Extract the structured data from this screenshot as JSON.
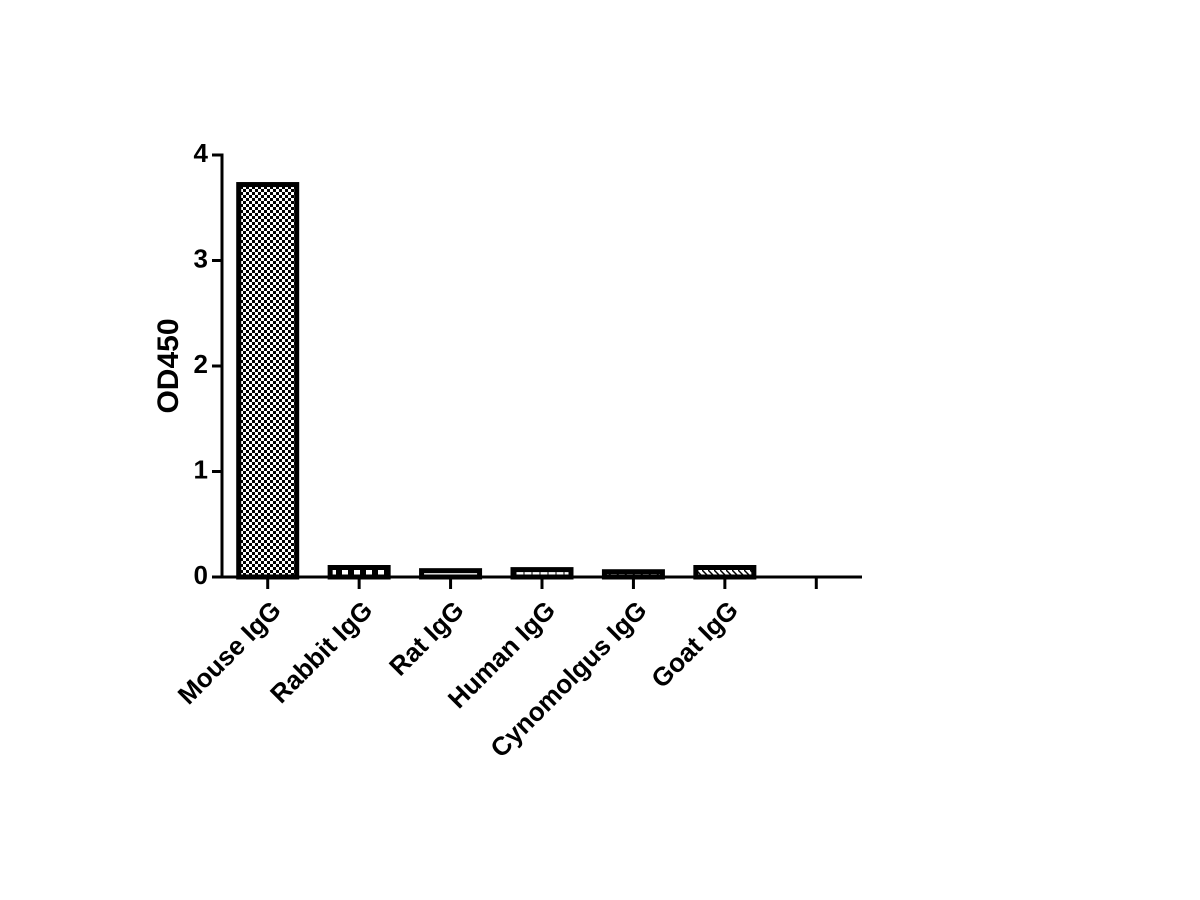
{
  "chart_data": {
    "type": "bar",
    "y_label": "OD450",
    "categories": [
      "Mouse IgG",
      "Rabbit IgG",
      "Rat IgG",
      "Human IgG",
      "Cynomolgus IgG",
      "Goat IgG",
      null
    ],
    "values": [
      3.72,
      0.09,
      0.06,
      0.07,
      0.05,
      0.09,
      null
    ],
    "color": "#000000",
    "ylim": [
      0,
      4
    ],
    "yticks": [
      0,
      1,
      2,
      3,
      4
    ],
    "grid": false
  }
}
